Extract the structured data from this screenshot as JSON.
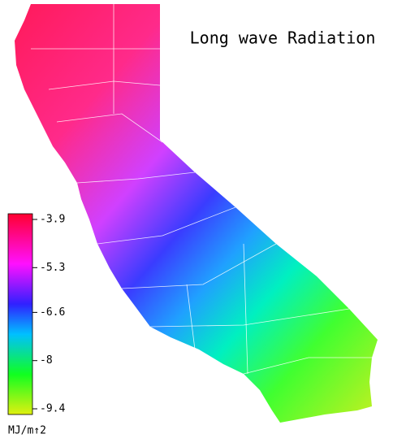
{
  "title": "Long wave Radiation",
  "colorbar": {
    "lim": [
      -3.9,
      -9.4
    ],
    "ticks": [
      -3.9,
      -5.3,
      -6.6,
      -8.0,
      -9.4
    ],
    "unit": "MJ/m↑2"
  }
}
